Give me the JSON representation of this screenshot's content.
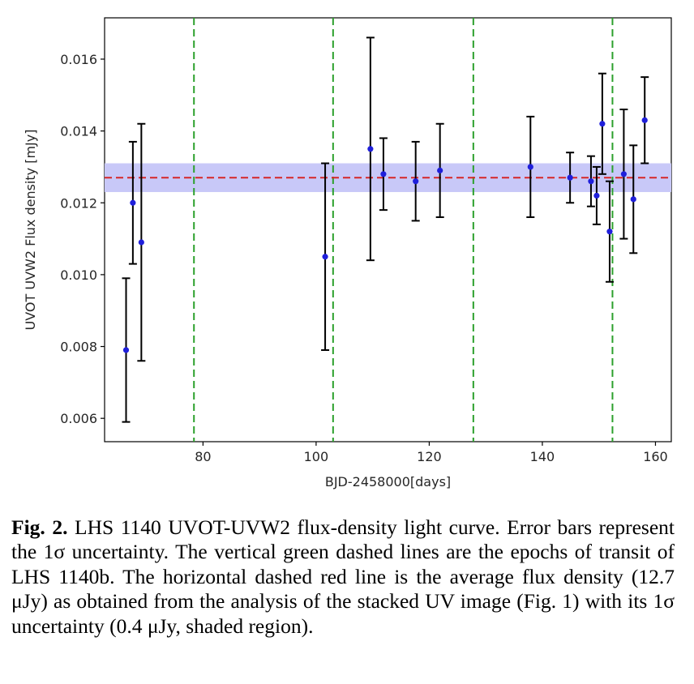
{
  "chart_data": {
    "type": "scatter",
    "xlabel": "BJD-2458000[days]",
    "ylabel": "UVOT UVW2 Flux density [mJy]",
    "xlim": [
      62.6,
      162.8
    ],
    "ylim": [
      0.00535,
      0.01715
    ],
    "xticks": [
      80,
      100,
      120,
      140,
      160
    ],
    "yticks": [
      0.006,
      0.008,
      0.01,
      0.012,
      0.014,
      0.016
    ],
    "ytick_labels": [
      "0.006",
      "0.008",
      "0.010",
      "0.012",
      "0.014",
      "0.016"
    ],
    "grid": false,
    "series": [
      {
        "x": [
          66.4,
          67.6,
          69.1,
          101.6,
          109.6,
          111.9,
          117.6,
          121.9,
          137.9,
          144.9,
          148.6,
          149.6,
          150.6,
          151.9,
          154.4,
          156.1,
          158.1
        ],
        "y": [
          0.0079,
          0.012,
          0.0109,
          0.0105,
          0.0135,
          0.0128,
          0.0126,
          0.0129,
          0.013,
          0.0127,
          0.0126,
          0.0122,
          0.0142,
          0.0112,
          0.0128,
          0.0121,
          0.0143
        ],
        "yerr": [
          0.002,
          0.0017,
          0.0033,
          0.0026,
          0.0031,
          0.001,
          0.0011,
          0.0013,
          0.0014,
          0.0007,
          0.0007,
          0.0008,
          0.0014,
          0.0014,
          0.0018,
          0.0015,
          0.0012
        ]
      }
    ],
    "transit_epochs": [
      78.4,
      103.0,
      127.8,
      152.4
    ],
    "mean_flux": 0.0127,
    "mean_flux_uncertainty": 0.0004,
    "colors": {
      "points": "#1f1fdb",
      "errorbars": "#000000",
      "transits": "#2ca02c",
      "mean_line": "#d62728",
      "shaded_band": "#c8c8f8"
    }
  },
  "caption": {
    "label": "Fig. 2.",
    "text": "LHS 1140 UVOT-UVW2 flux-density light curve. Error bars represent the 1σ uncertainty. The vertical green dashed lines are the epochs of transit of LHS 1140b. The horizontal dashed red line is the average flux density (12.7 μJy) as obtained from the analysis of the stacked UV image (Fig. 1) with its 1σ uncertainty (0.4 μJy, shaded region)."
  }
}
